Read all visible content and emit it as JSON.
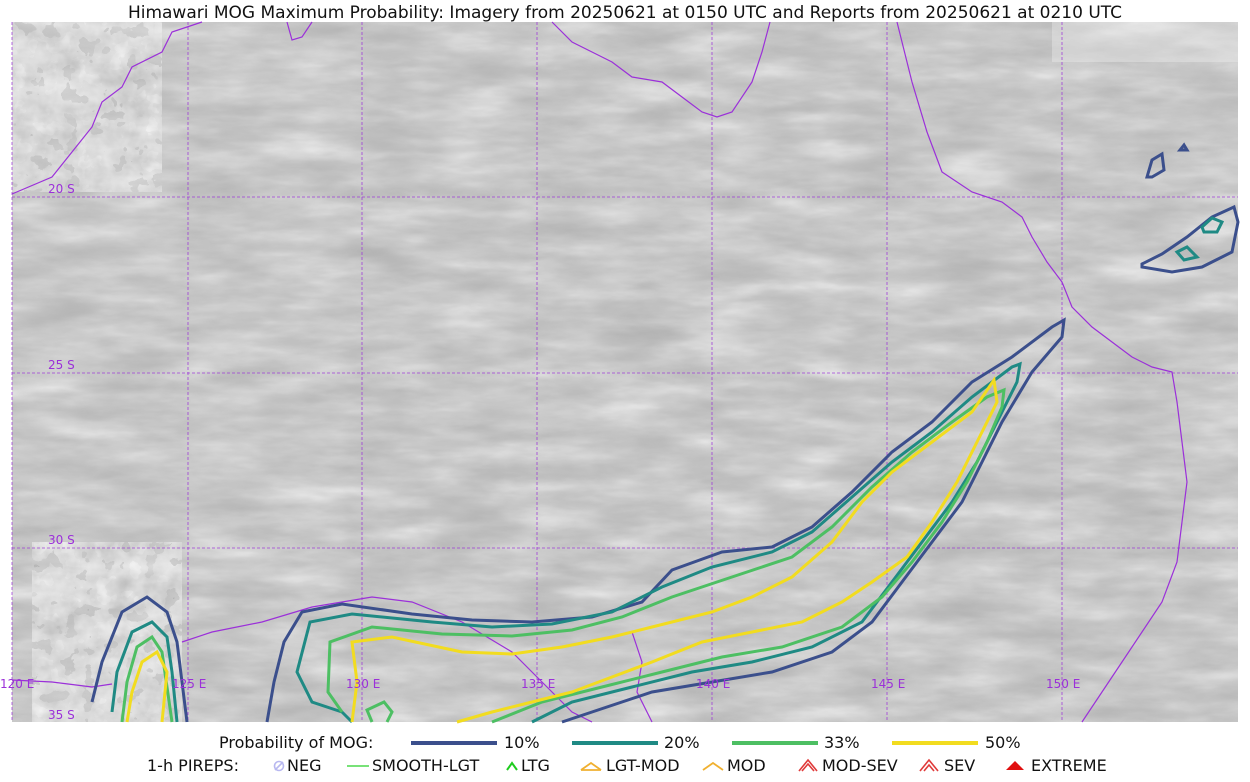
{
  "title": "Himawari MOG Maximum Probability: Imagery from 20250621 at 0150 UTC and Reports from 20250621 at 0210 UTC",
  "map": {
    "lat_labels": [
      "20 S",
      "25 S",
      "30 S",
      "35 S"
    ],
    "lon_labels": [
      "120 E",
      "125 E",
      "130 E",
      "135 E",
      "140 E",
      "145 E",
      "150 E"
    ],
    "coast_color": "#9b30d9",
    "grid_color": "#9b30d9"
  },
  "legend": {
    "probability_label": "Probability of MOG:",
    "levels": [
      {
        "label": "10%",
        "color": "#3b4f8c"
      },
      {
        "label": "20%",
        "color": "#1f8a84"
      },
      {
        "label": "33%",
        "color": "#4dbf63"
      },
      {
        "label": "50%",
        "color": "#f2dc1f"
      }
    ],
    "pirep_label": "1-h PIREPS:",
    "pireps": [
      {
        "label": "NEG",
        "color": "#b8b8f0",
        "icon": "neg-icon"
      },
      {
        "label": "SMOOTH-LGT",
        "color": "#4cd94c",
        "icon": "smooth-lgt-icon"
      },
      {
        "label": "LTG",
        "color": "#1fcc1f",
        "icon": "ltg-icon"
      },
      {
        "label": "LGT-MOD",
        "color": "#f0b030",
        "icon": "lgt-mod-icon"
      },
      {
        "label": "MOD",
        "color": "#f0b030",
        "icon": "mod-icon"
      },
      {
        "label": "MOD-SEV",
        "color": "#e03a3a",
        "icon": "mod-sev-icon"
      },
      {
        "label": "SEV",
        "color": "#e03a3a",
        "icon": "sev-icon"
      },
      {
        "label": "EXTREME",
        "color": "#e01010",
        "icon": "extreme-icon"
      }
    ]
  }
}
